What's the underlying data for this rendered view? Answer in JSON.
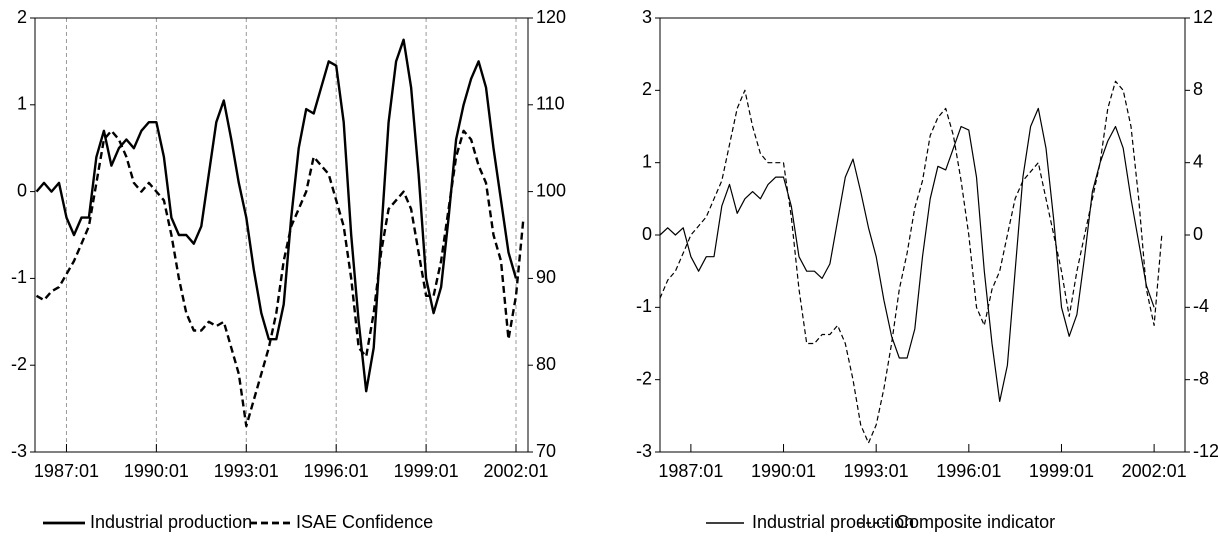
{
  "chart_data": [
    {
      "type": "line",
      "x": [
        1986.0,
        1986.25,
        1986.5,
        1986.75,
        1987.0,
        1987.25,
        1987.5,
        1987.75,
        1988.0,
        1988.25,
        1988.5,
        1988.75,
        1989.0,
        1989.25,
        1989.5,
        1989.75,
        1990.0,
        1990.25,
        1990.5,
        1990.75,
        1991.0,
        1991.25,
        1991.5,
        1991.75,
        1992.0,
        1992.25,
        1992.5,
        1992.75,
        1993.0,
        1993.25,
        1993.5,
        1993.75,
        1994.0,
        1994.25,
        1994.5,
        1994.75,
        1995.0,
        1995.25,
        1995.5,
        1995.75,
        1996.0,
        1996.25,
        1996.5,
        1996.75,
        1997.0,
        1997.25,
        1997.5,
        1997.75,
        1998.0,
        1998.25,
        1998.5,
        1998.75,
        1999.0,
        1999.25,
        1999.5,
        1999.75,
        2000.0,
        2000.25,
        2000.5,
        2000.75,
        2001.0,
        2001.25,
        2001.5,
        2001.75,
        2002.0,
        2002.25
      ],
      "series": [
        {
          "name": "Industrial production",
          "color": "#000000",
          "dashed": false,
          "axis": "y",
          "values": [
            0.0,
            0.1,
            0.0,
            0.1,
            -0.3,
            -0.5,
            -0.3,
            -0.3,
            0.4,
            0.7,
            0.3,
            0.5,
            0.6,
            0.5,
            0.7,
            0.8,
            0.8,
            0.4,
            -0.3,
            -0.5,
            -0.5,
            -0.6,
            -0.4,
            0.2,
            0.8,
            1.05,
            0.6,
            0.1,
            -0.3,
            -0.9,
            -1.4,
            -1.7,
            -1.7,
            -1.3,
            -0.3,
            0.5,
            0.95,
            0.9,
            1.2,
            1.5,
            1.45,
            0.8,
            -0.5,
            -1.5,
            -2.3,
            -1.8,
            -0.5,
            0.8,
            1.5,
            1.75,
            1.2,
            0.2,
            -1.0,
            -1.4,
            -1.1,
            -0.3,
            0.6,
            1.0,
            1.3,
            1.5,
            1.2,
            0.5,
            -0.1,
            -0.7,
            -1.0,
            null
          ]
        },
        {
          "name": "ISAE Confidence",
          "color": "#000000",
          "dashed": true,
          "axis": "y2",
          "values": [
            88,
            87.5,
            88.5,
            89,
            90.5,
            92,
            94,
            96,
            101,
            106,
            107,
            106,
            104,
            101,
            100,
            101,
            100,
            99,
            95,
            90,
            86,
            84,
            84,
            85,
            84.5,
            85,
            82,
            79,
            73,
            76,
            79,
            82,
            86,
            92,
            96,
            98,
            100,
            104,
            103,
            102,
            99,
            96,
            90,
            82,
            81,
            86,
            93,
            98,
            99,
            100,
            98,
            93,
            88,
            88,
            92,
            98,
            104,
            107,
            106,
            103,
            101,
            95,
            92,
            83,
            88,
            97
          ]
        }
      ],
      "xlim": [
        1985.95,
        2002.4
      ],
      "xticks": [
        {
          "value": 1987.0,
          "label": "1987:01"
        },
        {
          "value": 1990.0,
          "label": "1990:01"
        },
        {
          "value": 1993.0,
          "label": "1993:01"
        },
        {
          "value": 1996.0,
          "label": "1996:01"
        },
        {
          "value": 1999.0,
          "label": "1999:01"
        },
        {
          "value": 2002.0,
          "label": "2002:01"
        }
      ],
      "ylim": [
        -3,
        2
      ],
      "yticks": [
        -3,
        -2,
        -1,
        0,
        1,
        2
      ],
      "y2lim": [
        70,
        120
      ],
      "y2ticks": [
        70,
        80,
        90,
        100,
        110,
        120
      ],
      "grid": true
    },
    {
      "type": "line",
      "x": [
        1986.0,
        1986.25,
        1986.5,
        1986.75,
        1987.0,
        1987.25,
        1987.5,
        1987.75,
        1988.0,
        1988.25,
        1988.5,
        1988.75,
        1989.0,
        1989.25,
        1989.5,
        1989.75,
        1990.0,
        1990.25,
        1990.5,
        1990.75,
        1991.0,
        1991.25,
        1991.5,
        1991.75,
        1992.0,
        1992.25,
        1992.5,
        1992.75,
        1993.0,
        1993.25,
        1993.5,
        1993.75,
        1994.0,
        1994.25,
        1994.5,
        1994.75,
        1995.0,
        1995.25,
        1995.5,
        1995.75,
        1996.0,
        1996.25,
        1996.5,
        1996.75,
        1997.0,
        1997.25,
        1997.5,
        1997.75,
        1998.0,
        1998.25,
        1998.5,
        1998.75,
        1999.0,
        1999.25,
        1999.5,
        1999.75,
        2000.0,
        2000.25,
        2000.5,
        2000.75,
        2001.0,
        2001.25,
        2001.5,
        2001.75,
        2002.0,
        2002.25
      ],
      "series": [
        {
          "name": "Industrial production",
          "color": "#000000",
          "dashed": false,
          "axis": "y",
          "values": [
            0.0,
            0.1,
            0.0,
            0.1,
            -0.3,
            -0.5,
            -0.3,
            -0.3,
            0.4,
            0.7,
            0.3,
            0.5,
            0.6,
            0.5,
            0.7,
            0.8,
            0.8,
            0.4,
            -0.3,
            -0.5,
            -0.5,
            -0.6,
            -0.4,
            0.2,
            0.8,
            1.05,
            0.6,
            0.1,
            -0.3,
            -0.9,
            -1.4,
            -1.7,
            -1.7,
            -1.3,
            -0.3,
            0.5,
            0.95,
            0.9,
            1.2,
            1.5,
            1.45,
            0.8,
            -0.5,
            -1.5,
            -2.3,
            -1.8,
            -0.5,
            0.8,
            1.5,
            1.75,
            1.2,
            0.2,
            -1.0,
            -1.4,
            -1.1,
            -0.3,
            0.6,
            1.0,
            1.3,
            1.5,
            1.2,
            0.5,
            -0.1,
            -0.7,
            -1.0,
            null
          ]
        },
        {
          "name": "Composite indicator",
          "color": "#000000",
          "dashed": true,
          "axis": "y2",
          "values": [
            -3.5,
            -2.5,
            -2,
            -1,
            0,
            0.5,
            1,
            2,
            3,
            5,
            7,
            8,
            6,
            4.5,
            4,
            4,
            4,
            1,
            -3,
            -6,
            -6,
            -5.5,
            -5.5,
            -5,
            -6,
            -8,
            -10.5,
            -11.5,
            -10.5,
            -8.5,
            -6,
            -3,
            -1,
            1.5,
            3,
            5.5,
            6.5,
            7,
            5.5,
            3,
            0,
            -4,
            -5,
            -3,
            -2,
            0,
            2,
            3,
            3.5,
            4,
            2,
            0,
            -2,
            -4.5,
            -2,
            0,
            2,
            4,
            7,
            8.5,
            8,
            6,
            2,
            -3,
            -5,
            0
          ]
        }
      ],
      "xlim": [
        1986.0,
        2003.0
      ],
      "xticks": [
        {
          "value": 1987.0,
          "label": "1987:01"
        },
        {
          "value": 1990.0,
          "label": "1990:01"
        },
        {
          "value": 1993.0,
          "label": "1993:01"
        },
        {
          "value": 1996.0,
          "label": "1996:01"
        },
        {
          "value": 1999.0,
          "label": "1999:01"
        },
        {
          "value": 2002.0,
          "label": "2002:01"
        }
      ],
      "ylim": [
        -3,
        3
      ],
      "yticks": [
        -3,
        -2,
        -1,
        0,
        1,
        2,
        3
      ],
      "y2lim": [
        -12,
        12
      ],
      "y2ticks": [
        -12,
        -8,
        -4,
        0,
        4,
        8,
        12
      ],
      "grid": false
    }
  ]
}
